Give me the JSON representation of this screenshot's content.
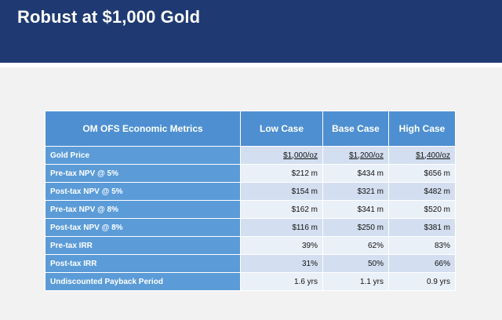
{
  "slide": {
    "title": "Robust at $1,000 Gold"
  },
  "table": {
    "headers": [
      "OM OFS Economic Metrics",
      "Low Case",
      "Base Case",
      "High Case"
    ],
    "rows": [
      {
        "label": "Gold Price",
        "values": [
          "$1,000/oz",
          "$1,200/oz",
          "$1,400/oz"
        ]
      },
      {
        "label": "Pre-tax NPV @ 5%",
        "values": [
          "$212 m",
          "$434 m",
          "$656 m"
        ]
      },
      {
        "label": "Post-tax NPV @ 5%",
        "values": [
          "$154 m",
          "$321 m",
          "$482 m"
        ]
      },
      {
        "label": "Pre-tax NPV @ 8%",
        "values": [
          "$162 m",
          "$341 m",
          "$520 m"
        ]
      },
      {
        "label": "Post-tax NPV @ 8%",
        "values": [
          "$116 m",
          "$250 m",
          "$381 m"
        ]
      },
      {
        "label": "Pre-tax IRR",
        "values": [
          "39%",
          "62%",
          "83%"
        ]
      },
      {
        "label": "Post-tax IRR",
        "values": [
          "31%",
          "50%",
          "66%"
        ]
      },
      {
        "label": "Undiscounted Payback Period",
        "values": [
          "1.6 yrs",
          "1.1 yrs",
          "0.9 yrs"
        ]
      }
    ]
  }
}
